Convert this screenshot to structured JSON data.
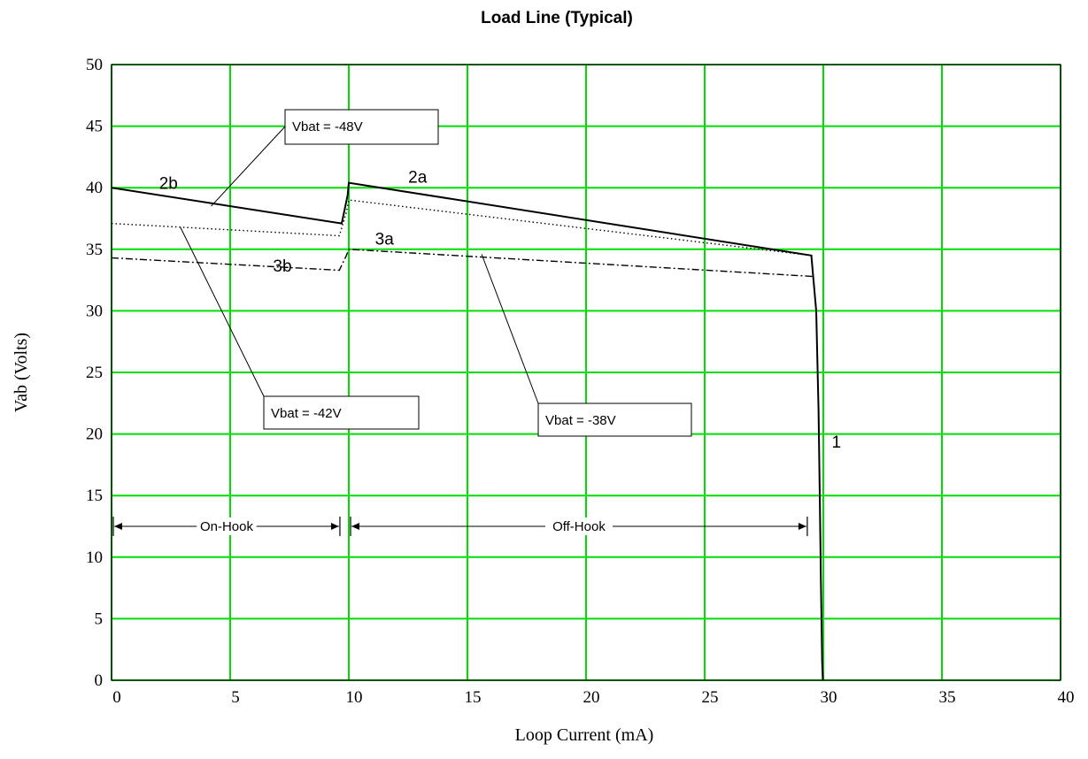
{
  "chart_data": {
    "type": "line",
    "title": "Load Line (Typical)",
    "xlabel": "Loop Current (mA)",
    "ylabel": "Vab (Volts)",
    "xlim": [
      0,
      40
    ],
    "ylim": [
      0,
      50
    ],
    "xticks": [
      0,
      5,
      10,
      15,
      20,
      25,
      30,
      35,
      40
    ],
    "yticks": [
      0,
      5,
      10,
      15,
      20,
      25,
      30,
      35,
      40,
      45,
      50
    ],
    "grid": true,
    "grid_color": "#00dd00",
    "series": [
      {
        "style": "solid",
        "points": [
          [
            0,
            40.0
          ],
          [
            9.7,
            37.1
          ],
          [
            9.95,
            39.4
          ],
          [
            10.0,
            40.4
          ],
          [
            29.5,
            34.5
          ],
          [
            29.5,
            34.4
          ],
          [
            29.7,
            30.0
          ],
          [
            29.8,
            22.0
          ],
          [
            29.85,
            15.0
          ],
          [
            29.9,
            8.0
          ],
          [
            29.95,
            1.5
          ],
          [
            29.98,
            0
          ]
        ]
      },
      {
        "style": "dotted",
        "points": [
          [
            0,
            37.1
          ],
          [
            9.6,
            36.1
          ],
          [
            9.9,
            38.0
          ],
          [
            10.0,
            39.0
          ],
          [
            29.5,
            34.5
          ]
        ]
      },
      {
        "style": "dashdot",
        "points": [
          [
            0,
            34.3
          ],
          [
            9.6,
            33.3
          ],
          [
            9.9,
            34.5
          ],
          [
            10.0,
            35.0
          ],
          [
            29.5,
            32.8
          ],
          [
            29.55,
            32.8
          ]
        ]
      }
    ],
    "curve_labels": [
      {
        "text": "2b",
        "x": 2.4,
        "y": 40.4
      },
      {
        "text": "2a",
        "x": 12.9,
        "y": 40.9
      },
      {
        "text": "3a",
        "x": 11.5,
        "y": 35.9
      },
      {
        "text": "3b",
        "x": 7.2,
        "y": 33.7
      },
      {
        "text": "1",
        "x": 30.55,
        "y": 19.4
      }
    ],
    "annotations": [
      {
        "text": "Vbat = -48V",
        "pointer_to": [
          4.2,
          38.5
        ]
      },
      {
        "text": "Vbat = -42V",
        "pointer_to": [
          2.9,
          36.8
        ]
      },
      {
        "text": "Vbat = -38V",
        "pointer_to": [
          15.6,
          34.6
        ]
      }
    ],
    "regions": [
      {
        "label": "On-Hook",
        "x_from": 0,
        "x_to": 9.7,
        "y": 12.5
      },
      {
        "label": "Off-Hook",
        "x_from": 10.0,
        "x_to": 29.4,
        "y": 12.5
      }
    ]
  }
}
